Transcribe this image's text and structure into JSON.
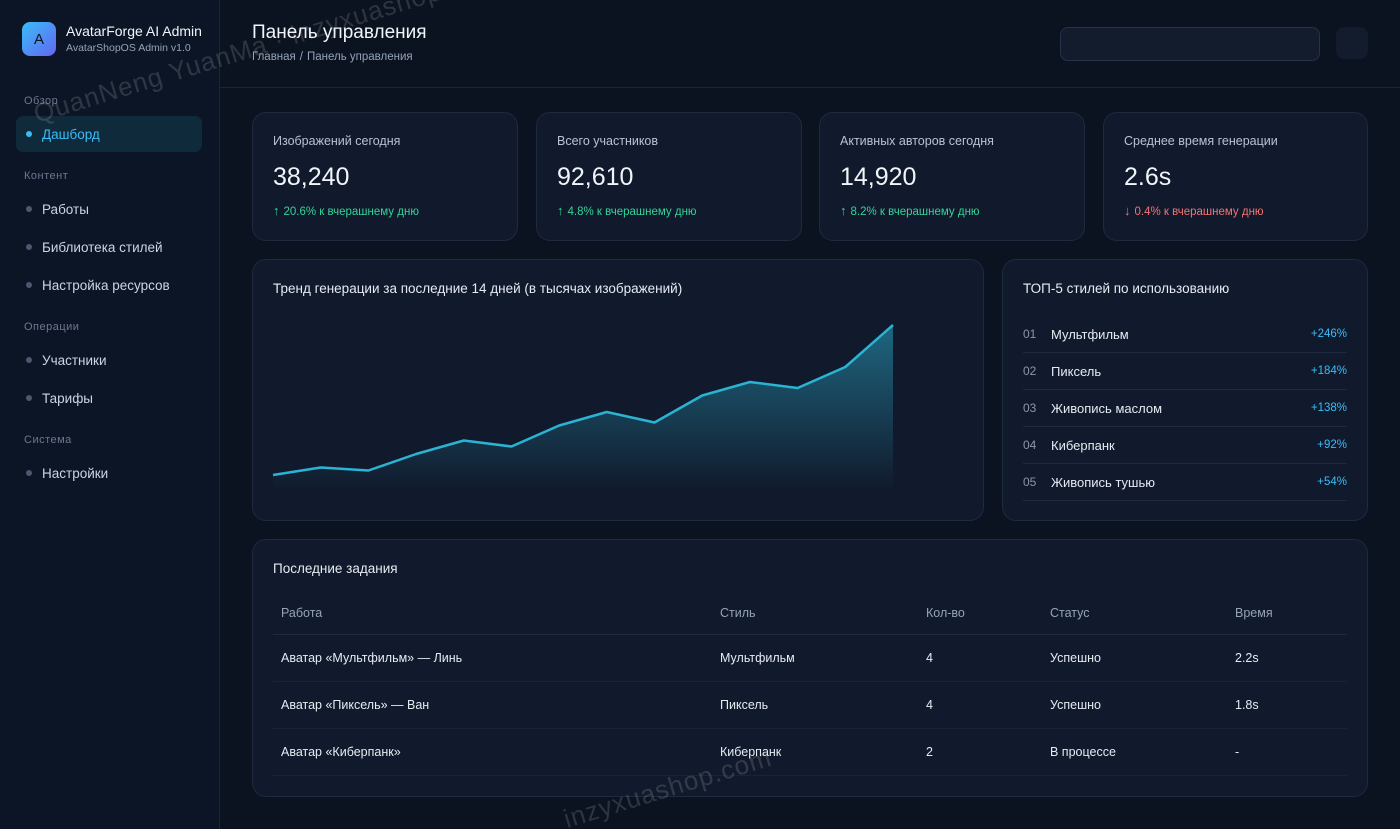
{
  "brand": {
    "logo_letter": "A",
    "title": "AvatarForge AI Admin",
    "subtitle": "AvatarShopOS Admin v1.0"
  },
  "sidebar": {
    "sections": [
      {
        "label": "Обзор",
        "items": [
          {
            "label": "Дашборд",
            "active": true
          }
        ]
      },
      {
        "label": "Контент",
        "items": [
          {
            "label": "Работы"
          },
          {
            "label": "Библиотека стилей"
          },
          {
            "label": "Настройка ресурсов"
          }
        ]
      },
      {
        "label": "Операции",
        "items": [
          {
            "label": "Участники"
          },
          {
            "label": "Тарифы"
          }
        ]
      },
      {
        "label": "Система",
        "items": [
          {
            "label": "Настройки"
          }
        ]
      }
    ]
  },
  "header": {
    "title": "Панель управления",
    "breadcrumb": [
      "Главная",
      "Панель управления"
    ],
    "breadcrumb_sep": "/"
  },
  "stats": [
    {
      "label": "Изображений сегодня",
      "value": "38,240",
      "change": "20.6% к вчерашнему дню",
      "trend": "up"
    },
    {
      "label": "Всего участников",
      "value": "92,610",
      "change": "4.8% к вчерашнему дню",
      "trend": "up"
    },
    {
      "label": "Активных авторов сегодня",
      "value": "14,920",
      "change": "8.2% к вчерашнему дню",
      "trend": "up"
    },
    {
      "label": "Среднее время генерации",
      "value": "2.6s",
      "change": "0.4% к вчерашнему дню",
      "trend": "down"
    }
  ],
  "arrows": {
    "up": "↑",
    "down": "↓"
  },
  "trend_card": {
    "title": "Тренд генерации за последние 14 дней (в тысячах изображений)"
  },
  "chart_data": {
    "type": "area",
    "title": "Тренд генерации за последние 14 дней (в тысячах изображений)",
    "values": [
      5,
      7.5,
      6.5,
      12,
      16.5,
      14.5,
      21.5,
      26,
      22.5,
      31.5,
      36,
      34,
      41,
      55
    ],
    "ylim": [
      0,
      60
    ],
    "color": "#2bb3d4",
    "grid": false,
    "legend": "none"
  },
  "top_styles": {
    "title": "ТОП-5 стилей по использованию",
    "items": [
      {
        "rank": "01",
        "name": "Мультфильм",
        "pct": "+246%"
      },
      {
        "rank": "02",
        "name": "Пиксель",
        "pct": "+184%"
      },
      {
        "rank": "03",
        "name": "Живопись маслом",
        "pct": "+138%"
      },
      {
        "rank": "04",
        "name": "Киберпанк",
        "pct": "+92%"
      },
      {
        "rank": "05",
        "name": "Живопись тушью",
        "pct": "+54%"
      }
    ]
  },
  "recent": {
    "title": "Последние задания",
    "columns": [
      "Работа",
      "Стиль",
      "Кол-во",
      "Статус",
      "Время"
    ],
    "rows": [
      {
        "work": "Аватар «Мультфильм» — Линь",
        "style": "Мультфильм",
        "qty": "4",
        "status": "Успешно",
        "status_type": "success",
        "time": "2.2s"
      },
      {
        "work": "Аватар «Пиксель» — Ван",
        "style": "Пиксель",
        "qty": "4",
        "status": "Успешно",
        "status_type": "success",
        "time": "1.8s"
      },
      {
        "work": "Аватар «Киберпанк»",
        "style": "Киберпанк",
        "qty": "2",
        "status": "В процессе",
        "status_type": "progress",
        "time": "-"
      }
    ]
  },
  "watermarks": [
    "QuanNeng YuanMa · inzyxuashop.com",
    "inzyxuashop.com"
  ],
  "colors": {
    "accent": "#38bdf8",
    "success": "#34d399",
    "danger": "#f87171",
    "warning": "#f5c16c",
    "background": "#0b1220"
  }
}
